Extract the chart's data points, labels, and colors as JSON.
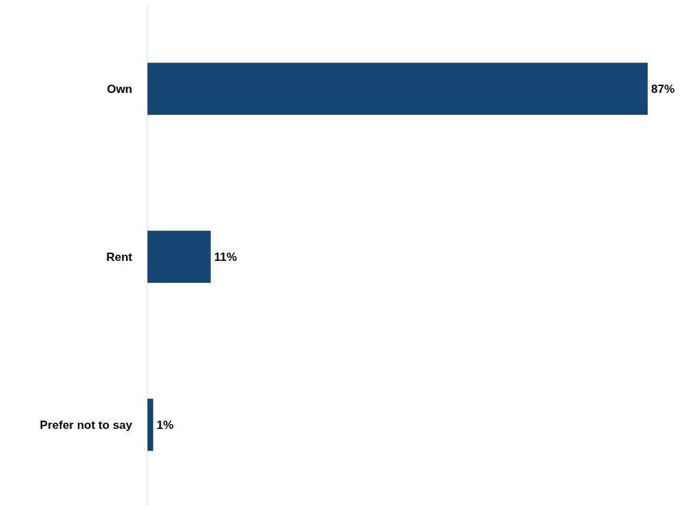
{
  "chart_data": {
    "type": "bar",
    "orientation": "horizontal",
    "categories": [
      "Own",
      "Rent",
      "Prefer not to say"
    ],
    "values": [
      87,
      11,
      1
    ],
    "color": "#154673",
    "value_labels": [
      "87%",
      "11%",
      "1%"
    ]
  }
}
